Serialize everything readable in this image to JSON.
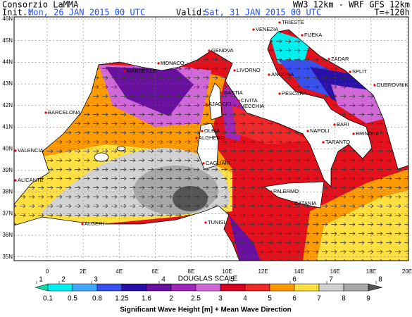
{
  "header": {
    "left_title": "Consorzio LaMMA",
    "model": "WW3 12km  -  WRF GFS 12km",
    "init_label": "Init.:",
    "init_value": "Mon, 26 JAN 2015   00 UTC",
    "valid_label": "Valid:",
    "valid_value": "Sat, 31 JAN 2015   00 UTC",
    "lead": "T=+120h"
  },
  "map": {
    "lat_labels": [
      "46N",
      "45N",
      "44N",
      "43N",
      "42N",
      "41N",
      "40N",
      "39N",
      "38N",
      "37N",
      "36N",
      "35N"
    ],
    "lon_labels": [
      "0",
      "2E",
      "4E",
      "6E",
      "8E",
      "10E",
      "12E",
      "14E",
      "16E",
      "18E",
      "20E"
    ],
    "places": [
      "TRIESTE",
      "VENEZIA",
      "FIJEKA",
      "ZADAR",
      "ANCONA",
      "SPLIT",
      "DUBROVNIK",
      "MONACO",
      "GENOVA",
      "MARSEILLE",
      "LIVORNO",
      "BASTIA",
      "AJACCIO",
      "PESCARA",
      "CIVITA",
      "VECCHIA",
      "BARCELONA",
      "NAPOLI",
      "BARI",
      "BRINDISI",
      "OLBIA",
      "ALGHERO",
      "TARANTO",
      "VALENCIA",
      "CAGLIARI",
      "ALICANTE",
      "PALERMO",
      "CATANIA",
      "TUNISI",
      "ALGERI"
    ]
  },
  "legend": {
    "douglas_title": "DOUGLAS SCALE",
    "douglas": [
      "1",
      "2",
      "3",
      "4",
      "5",
      "6",
      "7",
      "8"
    ],
    "breaks": [
      "0.1",
      "0.5",
      "0.8",
      "1.25",
      "1.6",
      "2",
      "2.5",
      "3",
      "4",
      "5",
      "6",
      "7",
      "8",
      "9"
    ],
    "colors": [
      "#10d8a8",
      "#00f0f0",
      "#40a8ff",
      "#3850f0",
      "#2810a8",
      "#6a10a0",
      "#a028b8",
      "#d068d8",
      "#d80020",
      "#f02828",
      "#ff9a00",
      "#ffe040",
      "#d2d2d2",
      "#a8a8a8",
      "#555555"
    ],
    "caption": "Significant Wave Height [m] + Mean Wave Direction"
  }
}
